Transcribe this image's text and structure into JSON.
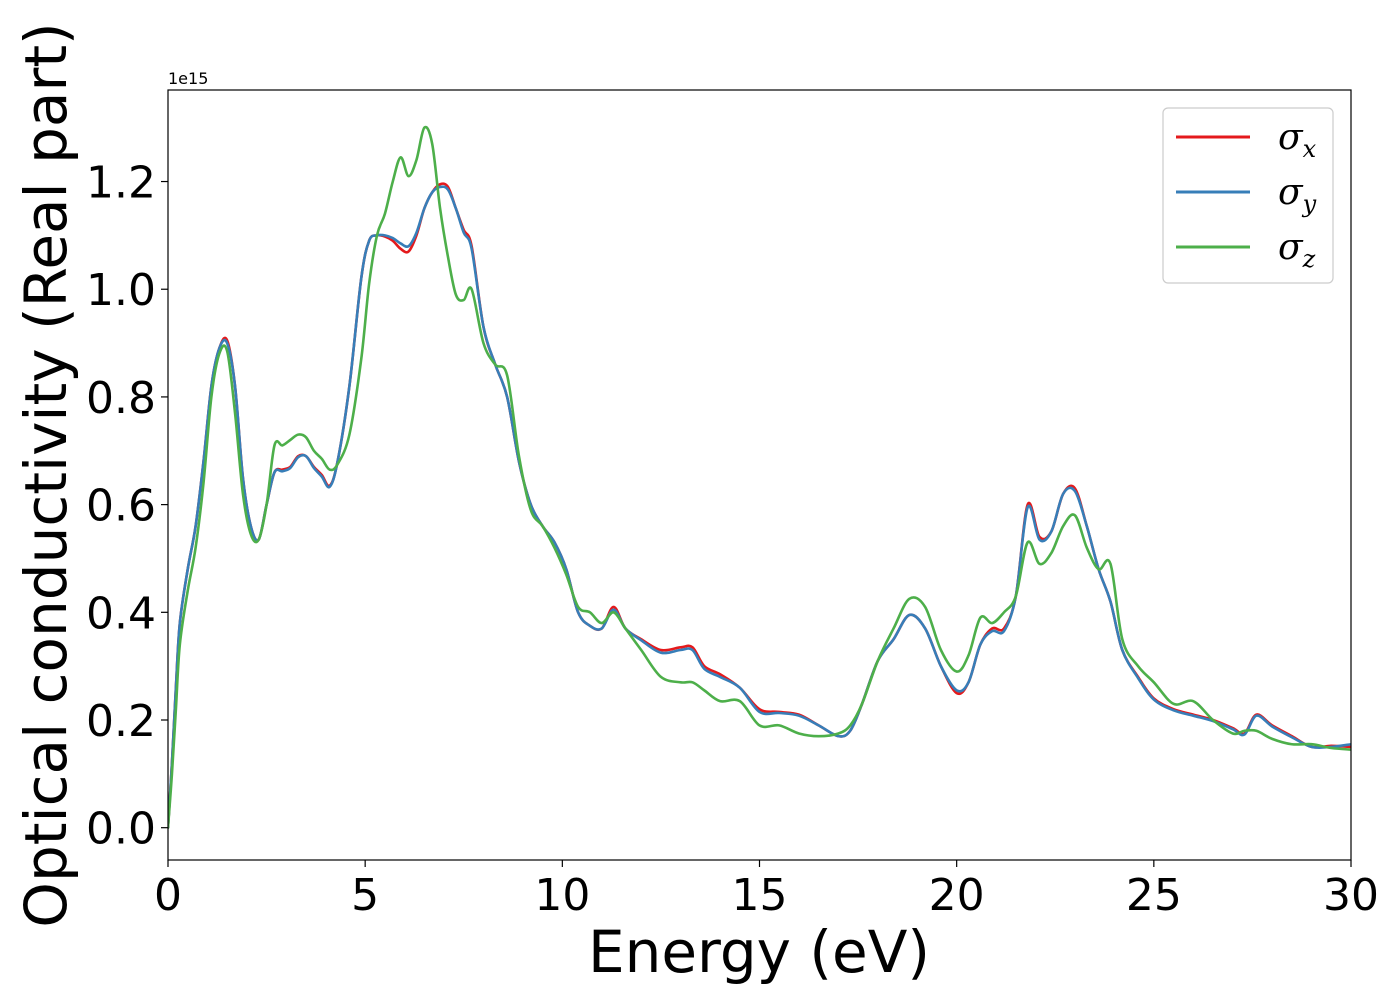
{
  "chart_data": {
    "type": "line",
    "xlabel": "Energy (eV)",
    "ylabel": "Optical conductivity (Real part)",
    "y_offset_label": "1e15",
    "y_scale_note": "values in units of 1e15",
    "xlim": [
      0,
      30
    ],
    "ylim": [
      -0.06,
      1.37
    ],
    "xticks": [
      0,
      5,
      10,
      15,
      20,
      25,
      30
    ],
    "xtick_labels": [
      "0",
      "5",
      "10",
      "15",
      "20",
      "25",
      "30"
    ],
    "yticks": [
      0.0,
      0.2,
      0.4,
      0.6,
      0.8,
      1.0,
      1.2
    ],
    "ytick_labels": [
      "0.0",
      "0.2",
      "0.4",
      "0.6",
      "0.8",
      "1.0",
      "1.2"
    ],
    "grid": false,
    "legend_position": "top-right",
    "series": [
      {
        "name": "σx",
        "base": "σ",
        "sub": "x",
        "color": "#e41a1c",
        "x": [
          0,
          0.1,
          0.2,
          0.3,
          0.5,
          0.7,
          0.9,
          1.1,
          1.3,
          1.5,
          1.7,
          1.9,
          2.1,
          2.3,
          2.5,
          2.7,
          2.9,
          3.1,
          3.3,
          3.5,
          3.7,
          3.9,
          4.1,
          4.3,
          4.6,
          4.9,
          5.1,
          5.3,
          5.5,
          5.7,
          5.9,
          6.1,
          6.3,
          6.5,
          6.7,
          6.9,
          7.1,
          7.3,
          7.5,
          7.7,
          8.0,
          8.3,
          8.6,
          8.9,
          9.2,
          9.5,
          9.8,
          10.1,
          10.4,
          10.7,
          11.0,
          11.3,
          11.6,
          12.0,
          12.5,
          13.0,
          13.3,
          13.6,
          14.0,
          14.5,
          15.0,
          15.5,
          16.0,
          16.5,
          17.0,
          17.3,
          17.6,
          18.0,
          18.4,
          18.8,
          19.2,
          19.6,
          20.0,
          20.3,
          20.6,
          20.9,
          21.2,
          21.5,
          21.8,
          22.1,
          22.4,
          22.7,
          23.0,
          23.3,
          23.6,
          23.9,
          24.2,
          24.6,
          25.0,
          25.5,
          26.0,
          26.5,
          27.0,
          27.3,
          27.6,
          28.0,
          28.5,
          29.0,
          29.5,
          30.0
        ],
        "y": [
          0.0,
          0.12,
          0.26,
          0.38,
          0.48,
          0.56,
          0.68,
          0.82,
          0.89,
          0.905,
          0.82,
          0.65,
          0.56,
          0.535,
          0.6,
          0.66,
          0.665,
          0.67,
          0.69,
          0.69,
          0.67,
          0.655,
          0.635,
          0.68,
          0.82,
          1.02,
          1.09,
          1.1,
          1.098,
          1.09,
          1.075,
          1.07,
          1.1,
          1.15,
          1.18,
          1.195,
          1.19,
          1.15,
          1.11,
          1.08,
          0.93,
          0.86,
          0.8,
          0.68,
          0.6,
          0.56,
          0.53,
          0.48,
          0.4,
          0.375,
          0.37,
          0.41,
          0.37,
          0.35,
          0.33,
          0.335,
          0.335,
          0.3,
          0.285,
          0.26,
          0.22,
          0.215,
          0.21,
          0.19,
          0.17,
          0.18,
          0.23,
          0.31,
          0.35,
          0.395,
          0.37,
          0.3,
          0.25,
          0.27,
          0.34,
          0.37,
          0.37,
          0.43,
          0.6,
          0.54,
          0.55,
          0.62,
          0.63,
          0.56,
          0.48,
          0.42,
          0.33,
          0.28,
          0.24,
          0.22,
          0.21,
          0.2,
          0.185,
          0.175,
          0.21,
          0.19,
          0.17,
          0.15,
          0.152,
          0.15
        ]
      },
      {
        "name": "σy",
        "base": "σ",
        "sub": "y",
        "color": "#377eb8",
        "x": [
          0,
          0.1,
          0.2,
          0.3,
          0.5,
          0.7,
          0.9,
          1.1,
          1.3,
          1.5,
          1.7,
          1.9,
          2.1,
          2.3,
          2.5,
          2.7,
          2.9,
          3.1,
          3.3,
          3.5,
          3.7,
          3.9,
          4.1,
          4.3,
          4.6,
          4.9,
          5.1,
          5.3,
          5.5,
          5.7,
          5.9,
          6.1,
          6.3,
          6.5,
          6.7,
          6.9,
          7.1,
          7.3,
          7.5,
          7.7,
          8.0,
          8.3,
          8.6,
          8.9,
          9.2,
          9.5,
          9.8,
          10.1,
          10.4,
          10.7,
          11.0,
          11.3,
          11.6,
          12.0,
          12.5,
          13.0,
          13.3,
          13.6,
          14.0,
          14.5,
          15.0,
          15.5,
          16.0,
          16.5,
          17.0,
          17.3,
          17.6,
          18.0,
          18.4,
          18.8,
          19.2,
          19.6,
          20.0,
          20.3,
          20.6,
          20.9,
          21.2,
          21.5,
          21.8,
          22.1,
          22.4,
          22.7,
          23.0,
          23.3,
          23.6,
          23.9,
          24.2,
          24.6,
          25.0,
          25.5,
          26.0,
          26.5,
          27.0,
          27.3,
          27.6,
          28.0,
          28.5,
          29.0,
          29.5,
          30.0
        ],
        "y": [
          0.0,
          0.12,
          0.26,
          0.38,
          0.48,
          0.56,
          0.68,
          0.82,
          0.89,
          0.9,
          0.82,
          0.65,
          0.56,
          0.535,
          0.6,
          0.66,
          0.662,
          0.668,
          0.688,
          0.69,
          0.668,
          0.652,
          0.633,
          0.68,
          0.82,
          1.02,
          1.09,
          1.1,
          1.1,
          1.095,
          1.085,
          1.08,
          1.105,
          1.15,
          1.18,
          1.19,
          1.185,
          1.15,
          1.105,
          1.075,
          0.93,
          0.86,
          0.8,
          0.68,
          0.6,
          0.56,
          0.53,
          0.48,
          0.4,
          0.375,
          0.37,
          0.405,
          0.37,
          0.348,
          0.325,
          0.33,
          0.33,
          0.295,
          0.28,
          0.26,
          0.215,
          0.213,
          0.208,
          0.19,
          0.17,
          0.18,
          0.23,
          0.31,
          0.35,
          0.395,
          0.37,
          0.3,
          0.255,
          0.27,
          0.34,
          0.365,
          0.365,
          0.43,
          0.595,
          0.535,
          0.55,
          0.62,
          0.625,
          0.56,
          0.48,
          0.42,
          0.33,
          0.278,
          0.238,
          0.218,
          0.208,
          0.198,
          0.183,
          0.173,
          0.208,
          0.188,
          0.168,
          0.15,
          0.15,
          0.155
        ]
      },
      {
        "name": "σz",
        "base": "σ",
        "sub": "z",
        "color": "#4daf4a",
        "x": [
          0,
          0.1,
          0.2,
          0.3,
          0.5,
          0.7,
          0.9,
          1.1,
          1.3,
          1.5,
          1.7,
          1.9,
          2.1,
          2.3,
          2.5,
          2.7,
          2.9,
          3.1,
          3.3,
          3.5,
          3.7,
          3.9,
          4.1,
          4.3,
          4.6,
          4.9,
          5.1,
          5.3,
          5.5,
          5.7,
          5.9,
          6.1,
          6.3,
          6.5,
          6.7,
          6.9,
          7.1,
          7.3,
          7.5,
          7.7,
          8.0,
          8.3,
          8.6,
          8.9,
          9.2,
          9.5,
          9.8,
          10.1,
          10.4,
          10.7,
          11.0,
          11.3,
          11.6,
          12.0,
          12.5,
          13.0,
          13.3,
          13.6,
          14.0,
          14.5,
          15.0,
          15.5,
          16.0,
          16.5,
          17.0,
          17.3,
          17.6,
          18.0,
          18.4,
          18.8,
          19.2,
          19.6,
          20.0,
          20.3,
          20.6,
          20.9,
          21.2,
          21.5,
          21.8,
          22.1,
          22.4,
          22.7,
          23.0,
          23.3,
          23.6,
          23.9,
          24.2,
          24.6,
          25.0,
          25.5,
          26.0,
          26.5,
          27.0,
          27.3,
          27.6,
          28.0,
          28.5,
          29.0,
          29.5,
          30.0
        ],
        "y": [
          0.0,
          0.1,
          0.22,
          0.34,
          0.44,
          0.52,
          0.64,
          0.8,
          0.88,
          0.885,
          0.77,
          0.62,
          0.545,
          0.535,
          0.6,
          0.71,
          0.71,
          0.72,
          0.73,
          0.725,
          0.7,
          0.685,
          0.665,
          0.675,
          0.73,
          0.87,
          1.01,
          1.1,
          1.14,
          1.2,
          1.245,
          1.21,
          1.24,
          1.3,
          1.27,
          1.15,
          1.06,
          0.99,
          0.98,
          1.0,
          0.9,
          0.86,
          0.84,
          0.69,
          0.59,
          0.56,
          0.52,
          0.47,
          0.41,
          0.4,
          0.38,
          0.4,
          0.37,
          0.33,
          0.28,
          0.27,
          0.27,
          0.255,
          0.235,
          0.235,
          0.19,
          0.19,
          0.175,
          0.17,
          0.175,
          0.19,
          0.23,
          0.31,
          0.37,
          0.425,
          0.41,
          0.33,
          0.29,
          0.32,
          0.39,
          0.38,
          0.4,
          0.43,
          0.53,
          0.49,
          0.51,
          0.56,
          0.58,
          0.52,
          0.48,
          0.49,
          0.35,
          0.3,
          0.27,
          0.23,
          0.235,
          0.2,
          0.175,
          0.18,
          0.18,
          0.165,
          0.155,
          0.155,
          0.148,
          0.145
        ]
      }
    ]
  }
}
